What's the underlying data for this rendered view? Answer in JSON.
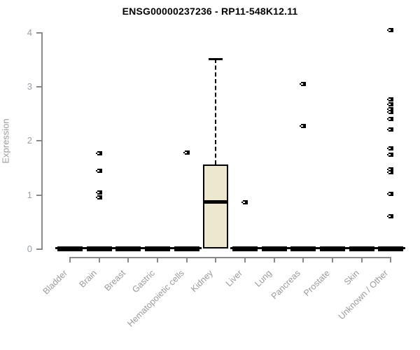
{
  "chart_data": {
    "type": "boxplot",
    "title": "ENSG00000237236 - RP11-548K12.11",
    "ylabel": "Expression",
    "xlabel": "",
    "ylim": [
      0,
      4
    ],
    "yticks": [
      0,
      1,
      2,
      3,
      4
    ],
    "grid": false,
    "legend": "none",
    "box_fill_color": "#ECE7CE",
    "box_line_color": "#000000",
    "axis_color": "#8a8a8a",
    "label_color": "#9a9a9a",
    "categories": [
      "Bladder",
      "Brain",
      "Breast",
      "Gastric",
      "Hematopoietic cells",
      "Kidney",
      "Liver",
      "Lung",
      "Pancreas",
      "Prostate",
      "Skin",
      "Unknown / Other"
    ],
    "boxes": [
      {
        "category": "Bladder",
        "whisker_low": 0,
        "q1": 0,
        "median": 0,
        "q3": 0,
        "whisker_high": 0,
        "outliers": []
      },
      {
        "category": "Brain",
        "whisker_low": 0,
        "q1": 0,
        "median": 0,
        "q3": 0,
        "whisker_high": 0,
        "outliers": [
          1.76,
          1.44,
          1.03,
          0.94
        ]
      },
      {
        "category": "Breast",
        "whisker_low": 0,
        "q1": 0,
        "median": 0,
        "q3": 0,
        "whisker_high": 0,
        "outliers": []
      },
      {
        "category": "Gastric",
        "whisker_low": 0,
        "q1": 0,
        "median": 0,
        "q3": 0,
        "whisker_high": 0,
        "outliers": []
      },
      {
        "category": "Hematopoietic cells",
        "whisker_low": 0,
        "q1": 0,
        "median": 0,
        "q3": 0,
        "whisker_high": 0,
        "outliers": [
          1.77
        ]
      },
      {
        "category": "Kidney",
        "whisker_low": 0,
        "q1": 0,
        "median": 0.87,
        "q3": 1.55,
        "whisker_high": 3.5,
        "outliers": []
      },
      {
        "category": "Liver",
        "whisker_low": 0,
        "q1": 0,
        "median": 0,
        "q3": 0,
        "whisker_high": 0,
        "outliers": [
          0.85
        ]
      },
      {
        "category": "Lung",
        "whisker_low": 0,
        "q1": 0,
        "median": 0,
        "q3": 0,
        "whisker_high": 0,
        "outliers": []
      },
      {
        "category": "Pancreas",
        "whisker_low": 0,
        "q1": 0,
        "median": 0,
        "q3": 0,
        "whisker_high": 0,
        "outliers": [
          3.04,
          2.26
        ]
      },
      {
        "category": "Prostate",
        "whisker_low": 0,
        "q1": 0,
        "median": 0,
        "q3": 0,
        "whisker_high": 0,
        "outliers": []
      },
      {
        "category": "Skin",
        "whisker_low": 0,
        "q1": 0,
        "median": 0,
        "q3": 0,
        "whisker_high": 0,
        "outliers": []
      },
      {
        "category": "Unknown / Other",
        "whisker_low": 0,
        "q1": 0,
        "median": 0,
        "q3": 0,
        "whisker_high": 0,
        "outliers": [
          4.03,
          2.75,
          2.66,
          2.57,
          2.52,
          2.39,
          2.2,
          1.85,
          1.73,
          1.46,
          1.41,
          1.01,
          0.6
        ]
      }
    ]
  }
}
